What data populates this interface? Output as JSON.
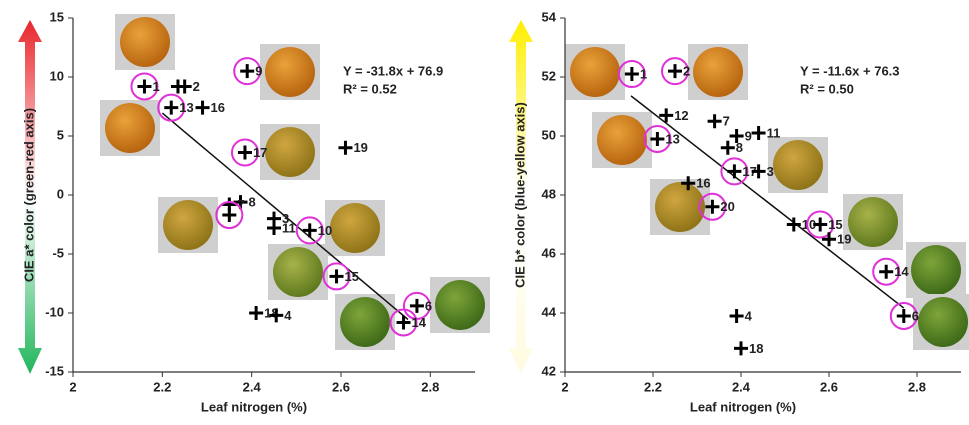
{
  "chart_data": [
    {
      "type": "scatter",
      "x_label": "Leaf nitrogen (%)",
      "y_label": "CIE a* color (green-red axis)",
      "xlim": [
        2,
        2.9
      ],
      "xticks": [
        2,
        2.2,
        2.4,
        2.6,
        2.8
      ],
      "ylim": [
        -15,
        15
      ],
      "yticks": [
        -15,
        -10,
        -5,
        0,
        5,
        10,
        15
      ],
      "x": [
        2.16,
        2.235,
        2.25,
        2.22,
        2.29,
        2.39,
        2.385,
        2.61,
        2.375,
        2.35,
        2.35,
        2.45,
        2.45,
        2.53,
        2.59,
        2.77,
        2.74,
        2.41,
        2.455
      ],
      "values": [
        9.2,
        9.2,
        9.2,
        7.4,
        7.4,
        10.5,
        3.6,
        4.0,
        -0.6,
        -0.8,
        -1.7,
        -2.0,
        -2.8,
        -3.0,
        -6.9,
        -9.4,
        -10.8,
        -10.0,
        -10.2
      ],
      "labels": [
        "1",
        null,
        "2",
        "13",
        "16",
        "9",
        "17",
        "19",
        "8",
        "7",
        null,
        "3",
        "11",
        "10",
        "15",
        "6",
        "14",
        "18",
        "4"
      ],
      "circled": [
        true,
        false,
        false,
        true,
        false,
        true,
        true,
        false,
        false,
        false,
        true,
        false,
        false,
        true,
        true,
        true,
        true,
        false,
        false
      ],
      "equation": "Y = -31.8x + 76.9",
      "r2": "R² = 0.52",
      "trend": {
        "slope": -31.8,
        "intercept": 76.9,
        "x_range": [
          2.2,
          2.75
        ]
      },
      "axis_gradient": [
        "#e8262b",
        "#ffffff",
        "#22b55c"
      ]
    },
    {
      "type": "scatter",
      "x_label": "Leaf nitrogen (%)",
      "y_label": "CIE b* color (blue-yellow axis)",
      "xlim": [
        2,
        2.9
      ],
      "xticks": [
        2,
        2.2,
        2.4,
        2.6,
        2.8
      ],
      "ylim": [
        42,
        54
      ],
      "yticks": [
        42,
        44,
        46,
        48,
        50,
        52,
        54
      ],
      "x": [
        2.152,
        2.25,
        2.23,
        2.34,
        2.39,
        2.44,
        2.21,
        2.37,
        2.385,
        2.44,
        2.28,
        2.335,
        2.52,
        2.58,
        2.6,
        2.73,
        2.77,
        2.39,
        2.4
      ],
      "values": [
        52.1,
        52.2,
        50.7,
        50.5,
        50.0,
        50.1,
        49.9,
        49.6,
        48.8,
        48.8,
        48.4,
        47.6,
        47.0,
        47.0,
        46.5,
        45.4,
        43.9,
        43.9,
        42.8
      ],
      "labels": [
        "1",
        "2",
        "12",
        "7",
        "9",
        "11",
        "13",
        "8",
        "17",
        "3",
        "16",
        "20",
        "10",
        "15",
        "19",
        "14",
        "6",
        "4",
        "18"
      ],
      "circled": [
        true,
        true,
        false,
        false,
        false,
        false,
        true,
        false,
        true,
        false,
        false,
        true,
        false,
        true,
        false,
        true,
        true,
        false,
        false
      ],
      "equation": "Y = -11.6x + 76.3",
      "r2": "R² = 0.50",
      "trend": {
        "slope": -11.6,
        "intercept": 76.3,
        "x_range": [
          2.15,
          2.77
        ]
      },
      "axis_gradient": [
        "#ffee00",
        "#ffffff",
        "#fffbe0"
      ]
    }
  ]
}
